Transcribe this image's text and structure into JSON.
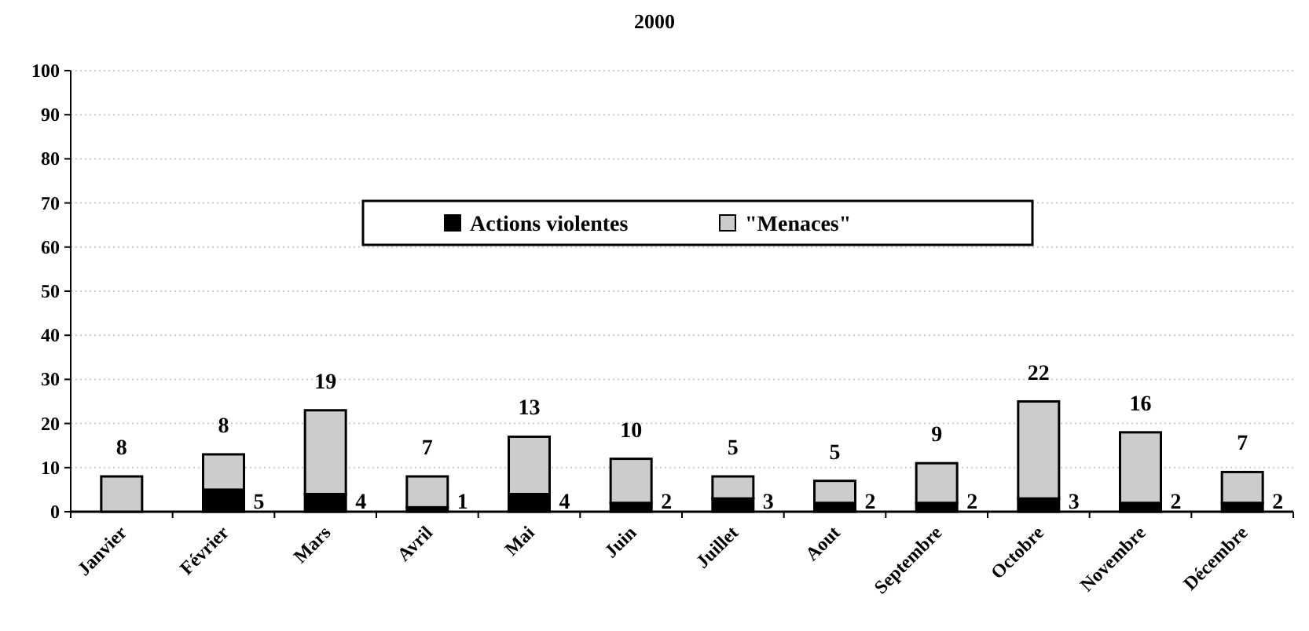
{
  "chart_data": {
    "type": "bar",
    "title": "2000",
    "stacked": true,
    "categories": [
      "Janvier",
      "Février",
      "Mars",
      "Avril",
      "Mai",
      "Juin",
      "Juillet",
      "Aout",
      "Septembre",
      "Octobre",
      "Novembre",
      "Décembre"
    ],
    "series": [
      {
        "name": "Actions violentes",
        "color": "#000000",
        "values": [
          0,
          5,
          4,
          1,
          4,
          2,
          3,
          2,
          2,
          3,
          2,
          2
        ],
        "value_labels": [
          null,
          "5",
          "4",
          "1",
          "4",
          "2",
          "3",
          "2",
          "2",
          "3",
          "2",
          "2"
        ]
      },
      {
        "name": "\"Menaces\"",
        "color": "#cccccc",
        "values": [
          8,
          8,
          19,
          7,
          13,
          10,
          5,
          5,
          9,
          22,
          16,
          7
        ],
        "value_labels": [
          "8",
          "8",
          "19",
          "7",
          "13",
          "10",
          "5",
          "5",
          "9",
          "22",
          "16",
          "7"
        ]
      }
    ],
    "ylim": [
      0,
      100
    ],
    "yticks": [
      0,
      10,
      20,
      30,
      40,
      50,
      60,
      70,
      80,
      90,
      100
    ],
    "grid": "y",
    "legend": "top"
  }
}
